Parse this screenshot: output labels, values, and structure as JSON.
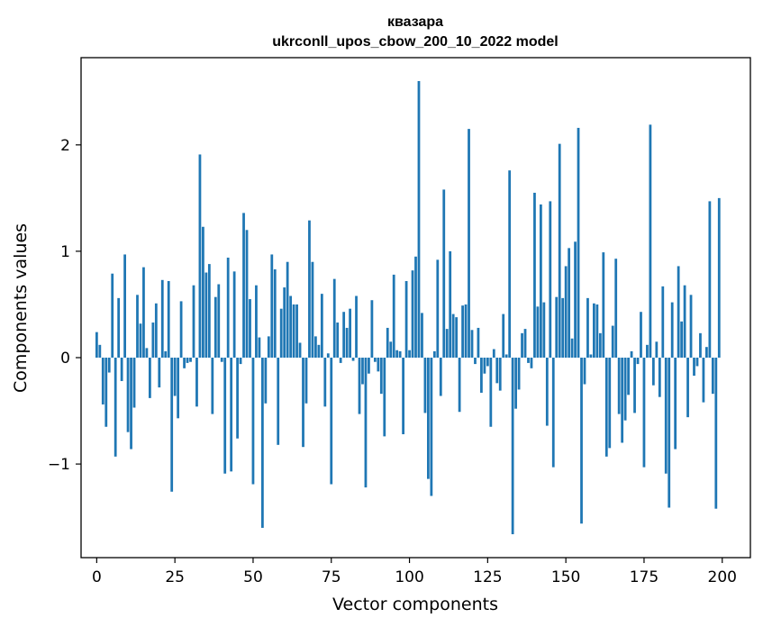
{
  "chart_data": {
    "type": "bar",
    "title": "квазара",
    "subtitle": "ukrconll_upos_cbow_200_10_2022 model",
    "xlabel": "Vector components",
    "ylabel": "Components values",
    "xlim": [
      -5,
      209
    ],
    "ylim": [
      -1.88,
      2.82
    ],
    "xticks": [
      0,
      25,
      50,
      75,
      100,
      125,
      150,
      175,
      200
    ],
    "xtick_labels": [
      "0",
      "25",
      "50",
      "75",
      "100",
      "125",
      "150",
      "175",
      "200"
    ],
    "yticks": [
      -1,
      0,
      1,
      2
    ],
    "ytick_labels": [
      "−1",
      "0",
      "1",
      "2"
    ],
    "grid": false,
    "bar_color": "#1f77b4",
    "x": [
      0,
      1,
      2,
      3,
      4,
      5,
      6,
      7,
      8,
      9,
      10,
      11,
      12,
      13,
      14,
      15,
      16,
      17,
      18,
      19,
      20,
      21,
      22,
      23,
      24,
      25,
      26,
      27,
      28,
      29,
      30,
      31,
      32,
      33,
      34,
      35,
      36,
      37,
      38,
      39,
      40,
      41,
      42,
      43,
      44,
      45,
      46,
      47,
      48,
      49,
      50,
      51,
      52,
      53,
      54,
      55,
      56,
      57,
      58,
      59,
      60,
      61,
      62,
      63,
      64,
      65,
      66,
      67,
      68,
      69,
      70,
      71,
      72,
      73,
      74,
      75,
      76,
      77,
      78,
      79,
      80,
      81,
      82,
      83,
      84,
      85,
      86,
      87,
      88,
      89,
      90,
      91,
      92,
      93,
      94,
      95,
      96,
      97,
      98,
      99,
      100,
      101,
      102,
      103,
      104,
      105,
      106,
      107,
      108,
      109,
      110,
      111,
      112,
      113,
      114,
      115,
      116,
      117,
      118,
      119,
      120,
      121,
      122,
      123,
      124,
      125,
      126,
      127,
      128,
      129,
      130,
      131,
      132,
      133,
      134,
      135,
      136,
      137,
      138,
      139,
      140,
      141,
      142,
      143,
      144,
      145,
      146,
      147,
      148,
      149,
      150,
      151,
      152,
      153,
      154,
      155,
      156,
      157,
      158,
      159,
      160,
      161,
      162,
      163,
      164,
      165,
      166,
      167,
      168,
      169,
      170,
      171,
      172,
      173,
      174,
      175,
      176,
      177,
      178,
      179,
      180,
      181,
      182,
      183,
      184,
      185,
      186,
      187,
      188,
      189,
      190,
      191,
      192,
      193,
      194,
      195,
      196,
      197,
      198,
      199
    ],
    "values": [
      0.24,
      0.12,
      -0.44,
      -0.65,
      -0.14,
      0.79,
      -0.93,
      0.56,
      -0.22,
      0.97,
      -0.7,
      -0.86,
      -0.47,
      0.59,
      0.32,
      0.85,
      0.09,
      -0.38,
      0.33,
      0.51,
      -0.28,
      0.73,
      0.06,
      0.72,
      -1.26,
      -0.36,
      -0.57,
      0.53,
      -0.1,
      -0.05,
      -0.04,
      0.68,
      -0.46,
      1.91,
      1.23,
      0.8,
      0.88,
      -0.53,
      0.57,
      0.69,
      -0.04,
      -1.09,
      0.94,
      -1.07,
      0.81,
      -0.76,
      -0.06,
      1.36,
      1.2,
      0.55,
      -1.19,
      0.68,
      0.19,
      -1.6,
      -0.43,
      0.2,
      0.97,
      0.83,
      -0.82,
      0.46,
      0.66,
      0.9,
      0.58,
      0.5,
      0.5,
      0.14,
      -0.84,
      -0.43,
      1.29,
      0.9,
      0.2,
      0.12,
      0.6,
      -0.46,
      0.04,
      -1.19,
      0.74,
      0.33,
      -0.05,
      0.43,
      0.28,
      0.46,
      -0.03,
      0.58,
      -0.53,
      -0.25,
      -1.22,
      -0.15,
      0.54,
      -0.04,
      -0.13,
      -0.34,
      -0.74,
      0.28,
      0.15,
      0.78,
      0.07,
      0.06,
      -0.72,
      0.72,
      0.07,
      0.82,
      0.95,
      2.6,
      0.42,
      -0.52,
      -1.14,
      -1.3,
      0.06,
      0.92,
      -0.36,
      1.58,
      0.27,
      1.0,
      0.41,
      0.38,
      -0.51,
      0.49,
      0.5,
      2.15,
      0.26,
      -0.06,
      0.28,
      -0.33,
      -0.15,
      -0.08,
      -0.65,
      0.08,
      -0.24,
      -0.31,
      0.41,
      0.03,
      1.76,
      -1.66,
      -0.48,
      -0.3,
      0.23,
      0.27,
      -0.05,
      -0.1,
      1.55,
      0.48,
      1.44,
      0.52,
      -0.64,
      1.47,
      -1.03,
      0.57,
      2.01,
      0.56,
      0.86,
      1.03,
      0.18,
      1.09,
      2.16,
      -1.56,
      -0.25,
      0.56,
      0.03,
      0.51,
      0.5,
      0.23,
      0.99,
      -0.93,
      -0.85,
      0.3,
      0.93,
      -0.53,
      -0.8,
      -0.59,
      -0.35,
      0.06,
      -0.52,
      -0.06,
      0.43,
      -1.03,
      0.12,
      2.19,
      -0.26,
      0.15,
      -0.37,
      0.67,
      -1.09,
      -1.41,
      0.52,
      -0.86,
      0.86,
      0.34,
      0.68,
      -0.56,
      0.59,
      -0.17,
      -0.08,
      0.23,
      -0.42,
      0.1,
      1.47,
      -0.34,
      -1.42,
      1.5
    ]
  }
}
